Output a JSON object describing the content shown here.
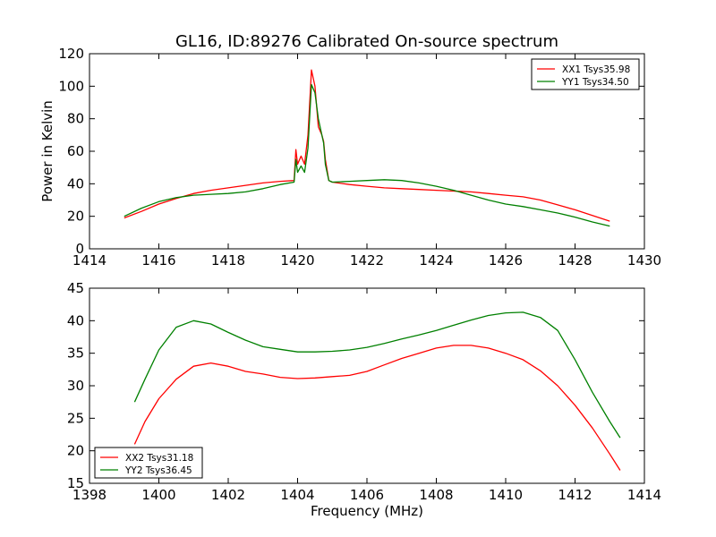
{
  "chart_data": [
    {
      "type": "line",
      "title": "GL16, ID:89276 Calibrated On-source spectrum",
      "xlabel": "",
      "ylabel": "Power in Kelvin",
      "xlim": [
        1414,
        1430
      ],
      "ylim": [
        0,
        120
      ],
      "xticks": [
        1414,
        1416,
        1418,
        1420,
        1422,
        1424,
        1426,
        1428,
        1430
      ],
      "yticks": [
        0,
        20,
        40,
        60,
        80,
        100,
        120
      ],
      "legend_position": "top-right",
      "grid": false,
      "series": [
        {
          "name": "XX1 Tsys35.98",
          "color": "#ff0000",
          "x": [
            1415.0,
            1415.5,
            1416.0,
            1416.5,
            1417.0,
            1417.5,
            1418.0,
            1418.5,
            1419.0,
            1419.5,
            1419.9,
            1419.95,
            1420.0,
            1420.1,
            1420.2,
            1420.3,
            1420.4,
            1420.5,
            1420.6,
            1420.7,
            1420.75,
            1420.8,
            1420.9,
            1421.0,
            1421.5,
            1422.0,
            1422.5,
            1423.0,
            1423.5,
            1424.0,
            1424.5,
            1425.0,
            1425.5,
            1426.0,
            1426.5,
            1427.0,
            1427.5,
            1428.0,
            1428.5,
            1429.0
          ],
          "y": [
            19,
            23,
            27.5,
            31,
            34,
            36,
            37.5,
            39,
            40.5,
            41.5,
            42,
            61,
            52,
            57,
            52,
            70,
            110,
            100,
            75,
            70,
            66,
            55,
            42,
            41,
            39.5,
            38.5,
            37.5,
            37,
            36.5,
            36,
            35.5,
            35,
            34,
            33,
            32,
            30,
            27,
            24,
            20.5,
            17
          ]
        },
        {
          "name": "YY1 Tsys34.50",
          "color": "#008000",
          "x": [
            1415.0,
            1415.5,
            1416.0,
            1416.5,
            1417.0,
            1417.5,
            1418.0,
            1418.5,
            1419.0,
            1419.5,
            1419.9,
            1419.95,
            1420.0,
            1420.1,
            1420.2,
            1420.3,
            1420.4,
            1420.5,
            1420.6,
            1420.7,
            1420.75,
            1420.8,
            1420.9,
            1421.0,
            1421.5,
            1422.0,
            1422.5,
            1423.0,
            1423.5,
            1424.0,
            1424.5,
            1425.0,
            1425.5,
            1426.0,
            1426.5,
            1427.0,
            1427.5,
            1428.0,
            1428.5,
            1429.0
          ],
          "y": [
            20,
            25,
            29,
            31.5,
            33,
            33.5,
            34,
            35,
            37,
            39.5,
            41,
            55,
            47,
            51,
            47,
            62,
            101,
            96,
            80,
            70,
            65,
            52,
            42,
            41,
            41.5,
            42,
            42.5,
            42,
            40.5,
            38.5,
            36,
            33,
            30,
            27.5,
            26,
            24,
            22,
            19.5,
            16.5,
            14
          ]
        }
      ]
    },
    {
      "type": "line",
      "title": "",
      "xlabel": "Frequency (MHz)",
      "ylabel": "",
      "xlim": [
        1398,
        1414
      ],
      "ylim": [
        15,
        45
      ],
      "xticks": [
        1398,
        1400,
        1402,
        1404,
        1406,
        1408,
        1410,
        1412,
        1414
      ],
      "yticks": [
        15,
        20,
        25,
        30,
        35,
        40,
        45
      ],
      "legend_position": "bottom-left",
      "grid": false,
      "series": [
        {
          "name": "XX2 Tsys31.18",
          "color": "#ff0000",
          "x": [
            1399.3,
            1399.6,
            1400.0,
            1400.5,
            1401.0,
            1401.5,
            1402.0,
            1402.5,
            1403.0,
            1403.5,
            1404.0,
            1404.5,
            1405.0,
            1405.5,
            1406.0,
            1406.5,
            1407.0,
            1407.5,
            1408.0,
            1408.5,
            1409.0,
            1409.5,
            1410.0,
            1410.5,
            1411.0,
            1411.5,
            1412.0,
            1412.5,
            1413.0,
            1413.3
          ],
          "y": [
            21,
            24.5,
            28,
            31,
            33,
            33.5,
            33,
            32.2,
            31.8,
            31.3,
            31.1,
            31.2,
            31.4,
            31.6,
            32.2,
            33.2,
            34.2,
            35,
            35.8,
            36.2,
            36.2,
            35.8,
            35,
            34,
            32.3,
            30,
            27,
            23.5,
            19.5,
            17
          ]
        },
        {
          "name": "YY2 Tsys36.45",
          "color": "#008000",
          "x": [
            1399.3,
            1399.6,
            1400.0,
            1400.5,
            1401.0,
            1401.5,
            1402.0,
            1402.5,
            1403.0,
            1403.5,
            1404.0,
            1404.5,
            1405.0,
            1405.5,
            1406.0,
            1406.5,
            1407.0,
            1407.5,
            1408.0,
            1408.5,
            1409.0,
            1409.5,
            1410.0,
            1410.5,
            1411.0,
            1411.5,
            1412.0,
            1412.5,
            1413.0,
            1413.3
          ],
          "y": [
            27.5,
            31,
            35.5,
            39,
            40,
            39.5,
            38.2,
            37,
            36,
            35.6,
            35.2,
            35.2,
            35.3,
            35.5,
            35.9,
            36.5,
            37.2,
            37.8,
            38.5,
            39.3,
            40.1,
            40.8,
            41.2,
            41.3,
            40.5,
            38.5,
            34,
            29,
            24.5,
            22
          ]
        }
      ]
    }
  ]
}
